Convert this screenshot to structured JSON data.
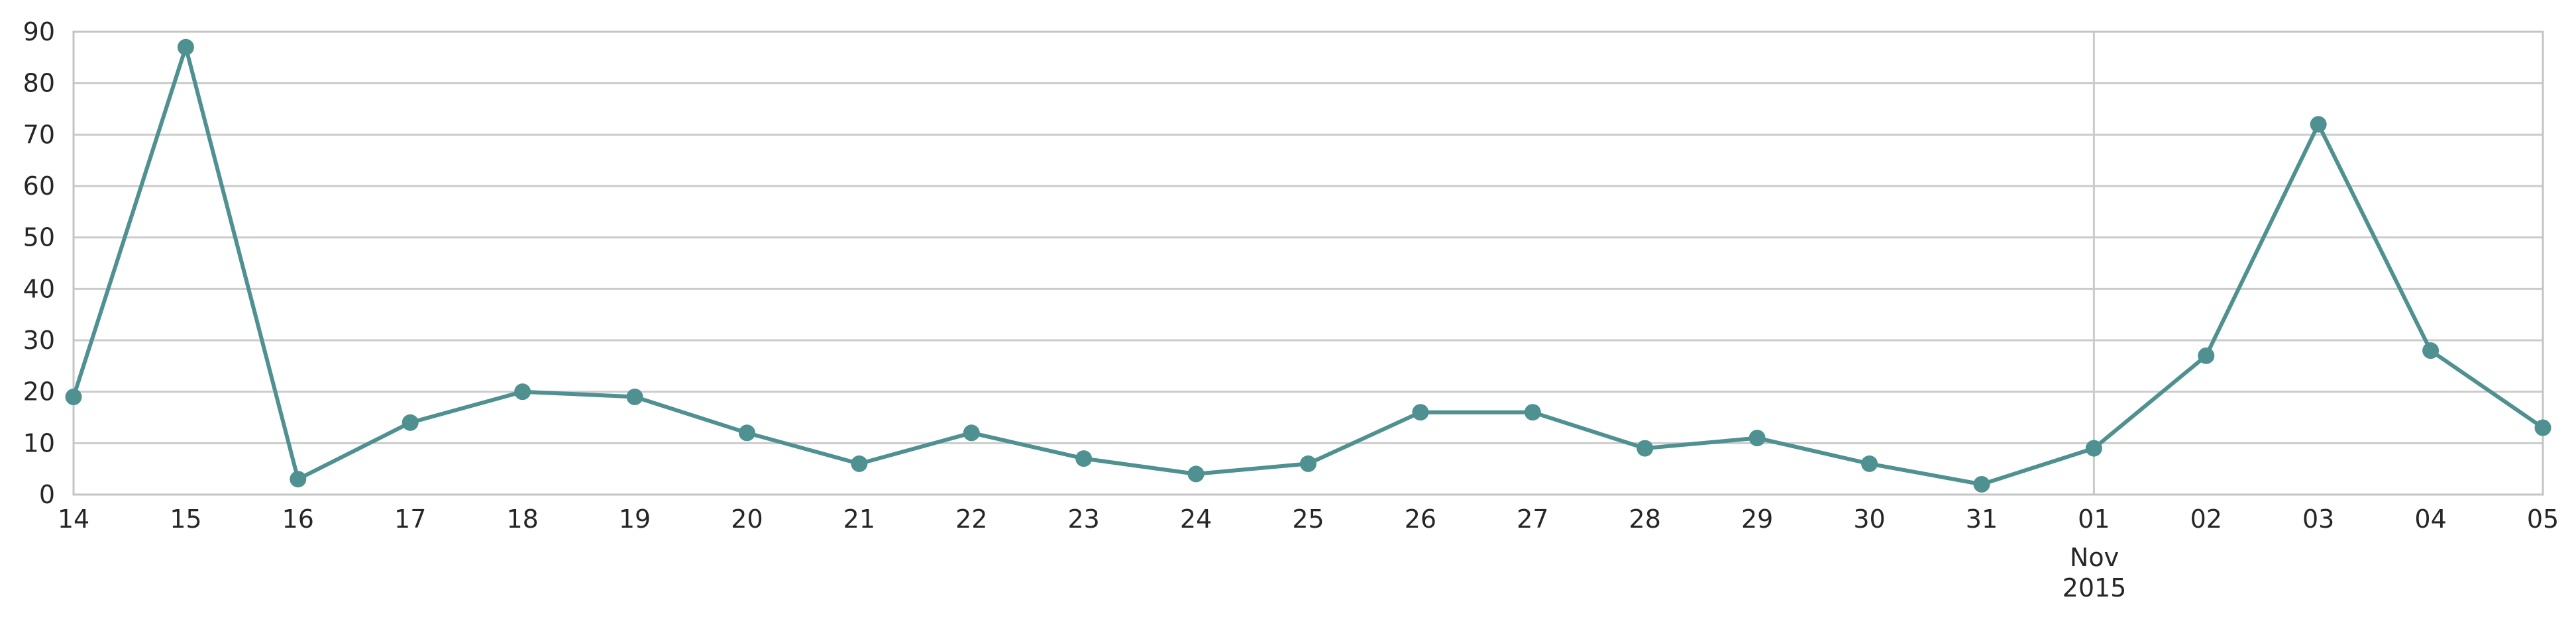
{
  "chart_data": {
    "type": "line",
    "title": "",
    "xlabel": "",
    "ylabel": "",
    "x": [
      "14",
      "15",
      "16",
      "17",
      "18",
      "19",
      "20",
      "21",
      "22",
      "23",
      "24",
      "25",
      "26",
      "27",
      "28",
      "29",
      "30",
      "31",
      "01",
      "02",
      "03",
      "04",
      "05"
    ],
    "x_dates": [
      "2015-10-14",
      "2015-10-15",
      "2015-10-16",
      "2015-10-17",
      "2015-10-18",
      "2015-10-19",
      "2015-10-20",
      "2015-10-21",
      "2015-10-22",
      "2015-10-23",
      "2015-10-24",
      "2015-10-25",
      "2015-10-26",
      "2015-10-27",
      "2015-10-28",
      "2015-10-29",
      "2015-10-30",
      "2015-10-31",
      "2015-11-01",
      "2015-11-02",
      "2015-11-03",
      "2015-11-04",
      "2015-11-05"
    ],
    "series": [
      {
        "values": [
          19,
          87,
          3,
          14,
          20,
          19,
          12,
          6,
          12,
          7,
          4,
          6,
          16,
          16,
          9,
          11,
          6,
          2,
          9,
          27,
          72,
          28,
          13
        ]
      }
    ],
    "y_ticks": [
      0,
      10,
      20,
      30,
      40,
      50,
      60,
      70,
      80,
      90
    ],
    "ylim": [
      0,
      90
    ],
    "month_marker": {
      "index": 18,
      "month": "Nov",
      "year": "2015"
    },
    "grid": true,
    "colors": {
      "line": "#4f9090",
      "grid": "#cbcbcb",
      "axis": "#c4c4c4",
      "text": "#262626"
    }
  }
}
